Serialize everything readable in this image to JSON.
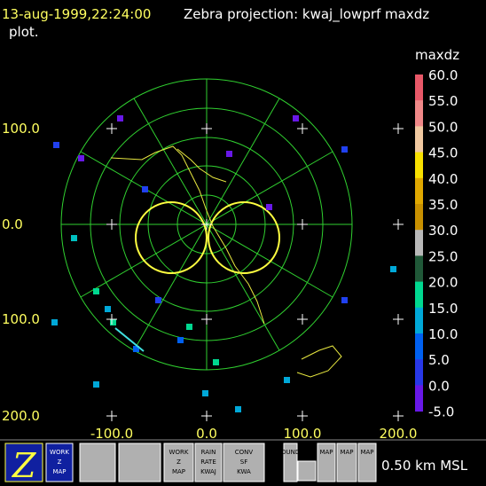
{
  "header": {
    "time": "13-aug-1999,22:24:00",
    "title": "Zebra projection: kwaj_lowprf maxdz",
    "title_cont": "plot."
  },
  "plot": {
    "y_labels": [
      "100.0",
      "0.0",
      "100.0",
      "200.0"
    ],
    "x_labels": [
      "-100.0",
      "0.0",
      "100.0",
      "200.0"
    ]
  },
  "colorbar": {
    "title": "maxdz",
    "labels": [
      "60.0",
      "55.0",
      "50.0",
      "45.0",
      "40.0",
      "35.0",
      "30.0",
      "25.0",
      "20.0",
      "15.0",
      "10.0",
      "5.0",
      "0.0",
      "-5.0"
    ],
    "colors": [
      "#e85868",
      "#f08888",
      "#f0c8a0",
      "#f8e000",
      "#e0a800",
      "#c89000",
      "#b8b8b8",
      "#205838",
      "#00d890",
      "#00a8d8",
      "#0060f0",
      "#2838e8",
      "#6818e8"
    ]
  },
  "footer": {
    "level": "0.50 km MSL"
  },
  "buttons": [
    "WORK Z MAP",
    "RAIN RATE KWAJ",
    "WORK Z MAP",
    "CONV SF KWA",
    "BOUNDS",
    "MAP",
    "MAP",
    "MAP"
  ]
}
